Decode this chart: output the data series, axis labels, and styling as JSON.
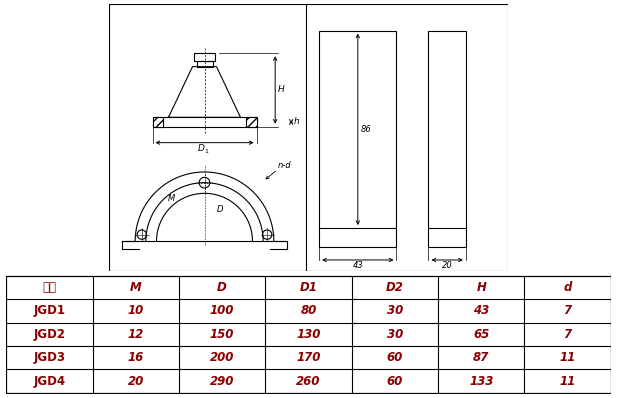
{
  "table_headers": [
    "型号",
    "M",
    "D",
    "D1",
    "D2",
    "H",
    "d"
  ],
  "table_rows": [
    [
      "JGD1",
      "10",
      "100",
      "80",
      "30",
      "43",
      "7"
    ],
    [
      "JGD2",
      "12",
      "150",
      "130",
      "30",
      "65",
      "7"
    ],
    [
      "JGD3",
      "16",
      "200",
      "170",
      "60",
      "87",
      "11"
    ],
    [
      "JGD4",
      "20",
      "290",
      "260",
      "60",
      "133",
      "11"
    ]
  ],
  "bg_color": "#ffffff",
  "line_color": "#000000",
  "dark_red": "#8B0000"
}
